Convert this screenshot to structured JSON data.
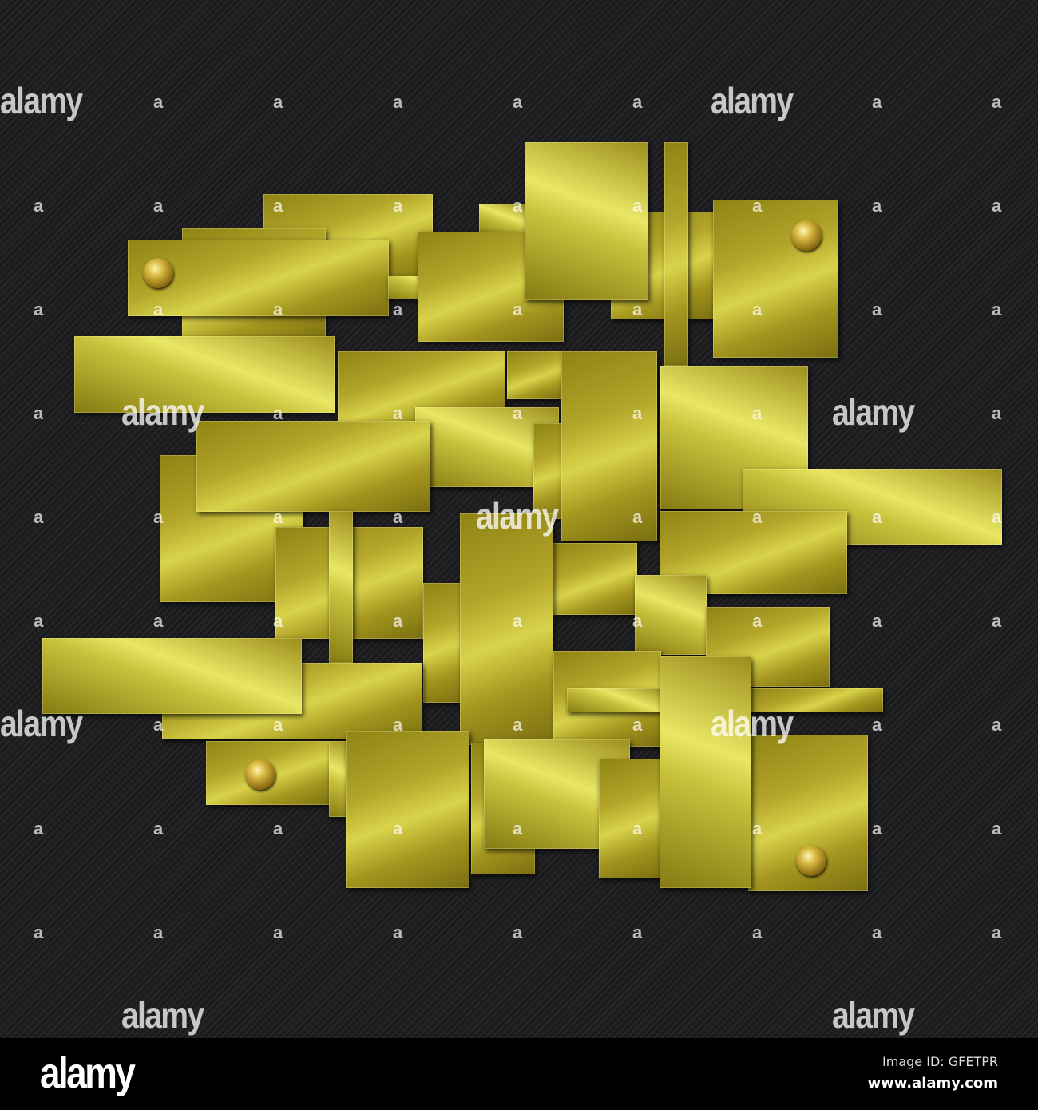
{
  "image": {
    "subject": "gold-metal-plates-on-carbon-background",
    "colors": {
      "background": "#1c1c1e",
      "gold_light": "#d9d34a",
      "gold_dark": "#7a6e10"
    }
  },
  "watermark": {
    "text": "alamy",
    "mark": "a"
  },
  "footer": {
    "logo": "alamy",
    "image_id": "Image ID: GFETPR",
    "website": "www.alamy.com"
  }
}
